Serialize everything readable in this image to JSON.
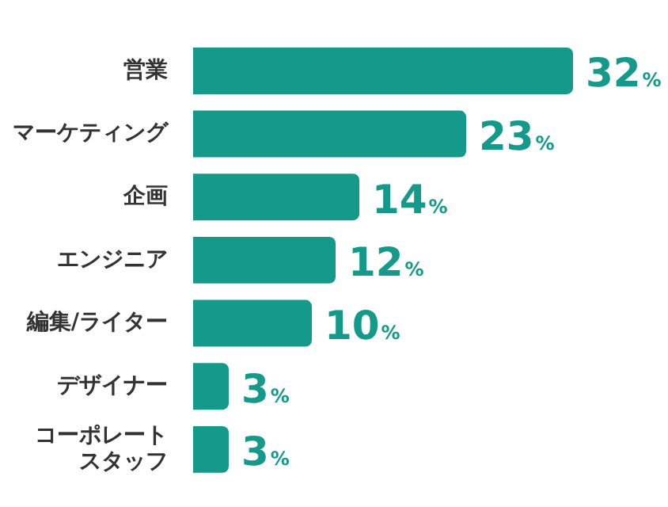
{
  "chart_data": {
    "type": "bar",
    "orientation": "horizontal",
    "categories": [
      "営業",
      "マーケティング",
      "企画",
      "エンジニア",
      "編集/ライター",
      "デザイナー",
      "コーポレートスタッフ"
    ],
    "values": [
      32,
      23,
      14,
      12,
      10,
      3,
      3
    ],
    "value_labels": [
      "32%",
      "23%",
      "14%",
      "12%",
      "10%",
      "3%",
      "3%"
    ],
    "color": "#14998a"
  }
}
